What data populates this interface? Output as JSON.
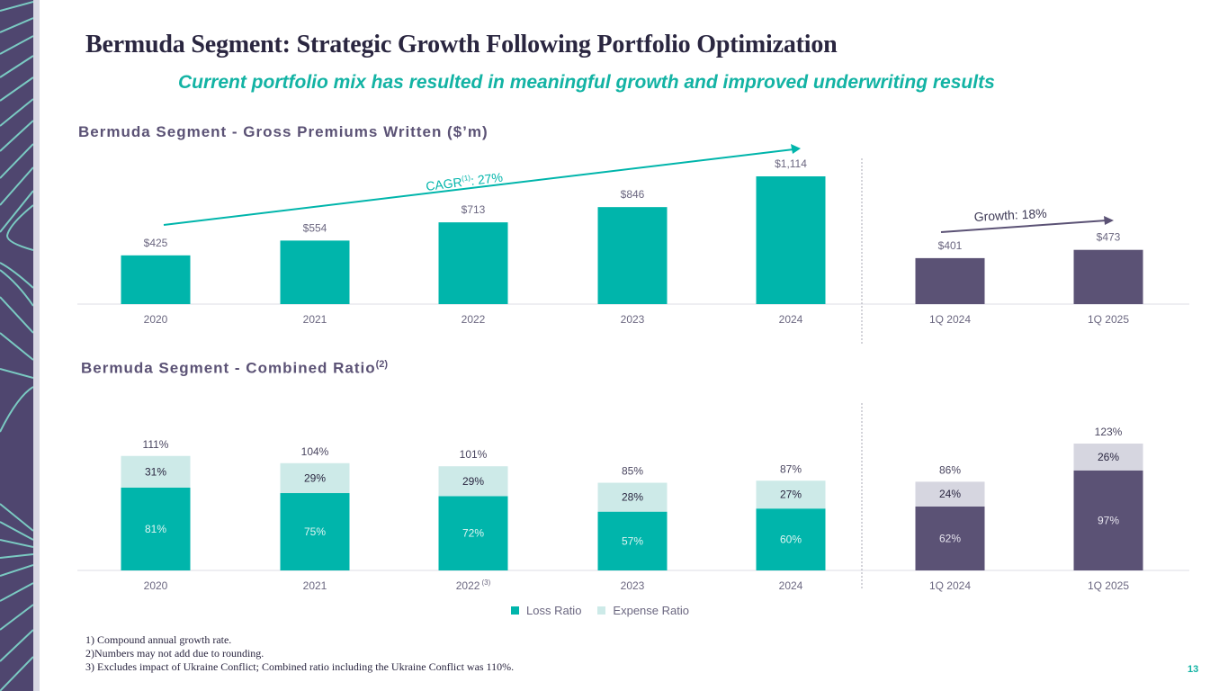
{
  "slide": {
    "title": "Bermuda Segment: Strategic Growth Following Portfolio Optimization",
    "subtitle": "Current portfolio mix has resulted in meaningful growth and improved underwriting results",
    "page_number": "13",
    "colors": {
      "teal": "#00b5ab",
      "teal_light": "#cdeae8",
      "purple": "#5b5275",
      "purple_light": "#d6d6e0",
      "title": "#2a2640",
      "accent_text": "#13b3a4"
    },
    "footnotes": [
      "1) Compound annual growth rate.",
      "2)Numbers may not add due to rounding.",
      "3) Excludes impact of Ukraine Conflict; Combined ratio including the Ukraine Conflict was 110%."
    ]
  },
  "chart_data": [
    {
      "type": "bar",
      "title": "Bermuda Segment - Gross Premiums Written ($’m)",
      "categories": [
        "2020",
        "2021",
        "2022",
        "2023",
        "2024",
        "1Q 2024",
        "1Q 2025"
      ],
      "values": [
        425,
        554,
        713,
        846,
        1114,
        401,
        473
      ],
      "data_labels": [
        "$425",
        "$554",
        "$713",
        "$846",
        "$1,114",
        "$401",
        "$473"
      ],
      "groups": [
        "annual",
        "annual",
        "annual",
        "annual",
        "annual",
        "quarterly",
        "quarterly"
      ],
      "ylim": [
        0,
        1200
      ],
      "xlabel": "",
      "ylabel": "",
      "grid": false,
      "annotations": [
        {
          "text": "CAGR",
          "sup": "(1)",
          "suffix": ": 27%",
          "from": "2020",
          "to": "2024"
        },
        {
          "text": "Growth: 18%",
          "from": "1Q 2024",
          "to": "1Q 2025"
        }
      ]
    },
    {
      "type": "bar",
      "stacked": true,
      "title": "Bermuda Segment - Combined Ratio",
      "title_sup": "(2)",
      "categories": [
        "2020",
        "2021",
        "2022",
        "2023",
        "2024",
        "1Q 2024",
        "1Q 2025"
      ],
      "category_sups": [
        "",
        "",
        "(3)",
        "",
        "",
        "",
        ""
      ],
      "series": [
        {
          "name": "Loss Ratio",
          "values": [
            81,
            75,
            72,
            57,
            60,
            62,
            97
          ]
        },
        {
          "name": "Expense Ratio",
          "values": [
            31,
            29,
            29,
            28,
            27,
            24,
            26
          ]
        }
      ],
      "totals": [
        111,
        104,
        101,
        85,
        87,
        86,
        123
      ],
      "groups": [
        "annual",
        "annual",
        "annual",
        "annual",
        "annual",
        "quarterly",
        "quarterly"
      ],
      "ylim": [
        0,
        130
      ],
      "legend": "bottom",
      "grid": false
    }
  ]
}
